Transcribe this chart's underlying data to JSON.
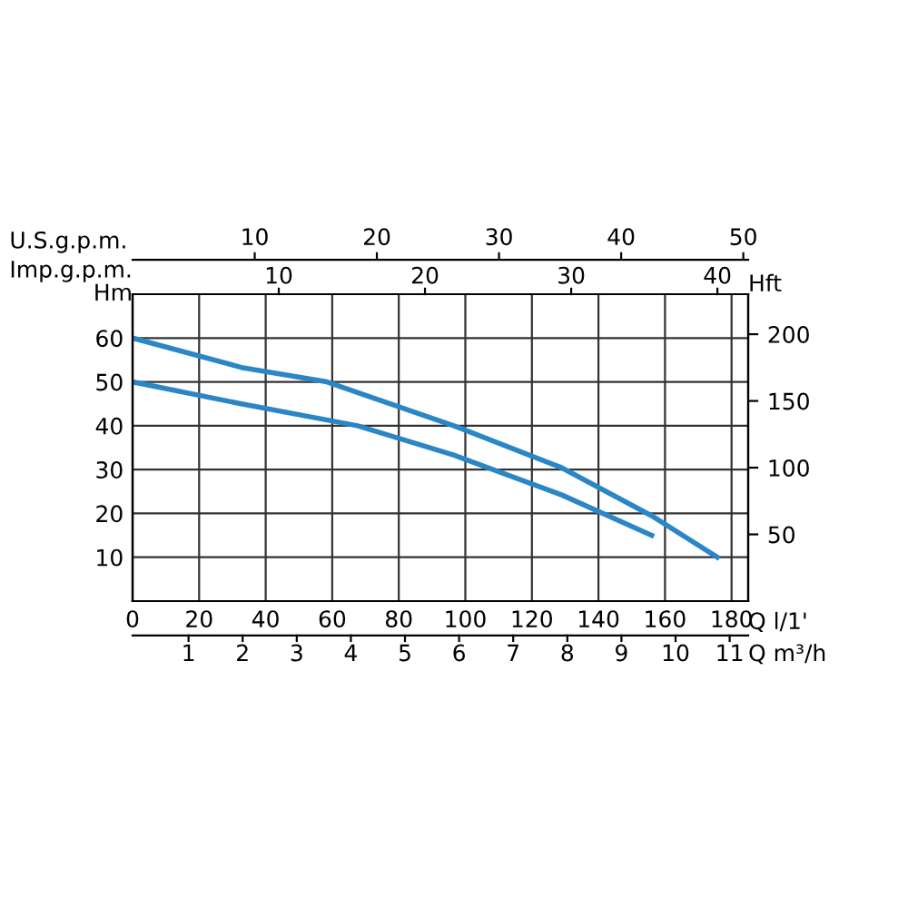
{
  "chart_data": {
    "type": "line",
    "xlabel": "Q l/1'",
    "ylabel": "Hm",
    "y2label": "Hft",
    "x2label": "U.S.g.p.m.",
    "xlim": [
      0,
      185
    ],
    "xticks": [
      0,
      20,
      40,
      60,
      80,
      100,
      120,
      140,
      160,
      180
    ],
    "ylim": [
      0,
      70
    ],
    "yticks": [
      10,
      20,
      30,
      40,
      50,
      60
    ],
    "y2lim": [
      0,
      230
    ],
    "y2ticks": [
      50,
      100,
      150,
      200
    ],
    "x2lim": [
      0,
      50.4
    ],
    "x2ticks": [
      10,
      20,
      30,
      40,
      50
    ],
    "grid": true,
    "marker": "none",
    "line_style": "solid",
    "annotations": [
      "Imp.g.p.m.",
      "10",
      "20",
      "30",
      "40",
      "Q m³/h",
      "1",
      "2",
      "3",
      "4",
      "5",
      "6",
      "7",
      "8",
      "9",
      "10",
      "11"
    ],
    "series": [
      {
        "color": "#2b86c5",
        "x": [
          0,
          32.7,
          58.4,
          96.5,
          129,
          156.6,
          175.7
        ],
        "values": [
          60,
          53.3,
          50,
          40,
          30.4,
          19.2,
          10
        ]
      },
      {
        "color": "#2b86c5",
        "x": [
          0,
          32.7,
          67.6,
          96.5,
          129,
          156
        ],
        "values": [
          50,
          45,
          40,
          33.3,
          24.2,
          15
        ]
      }
    ]
  }
}
